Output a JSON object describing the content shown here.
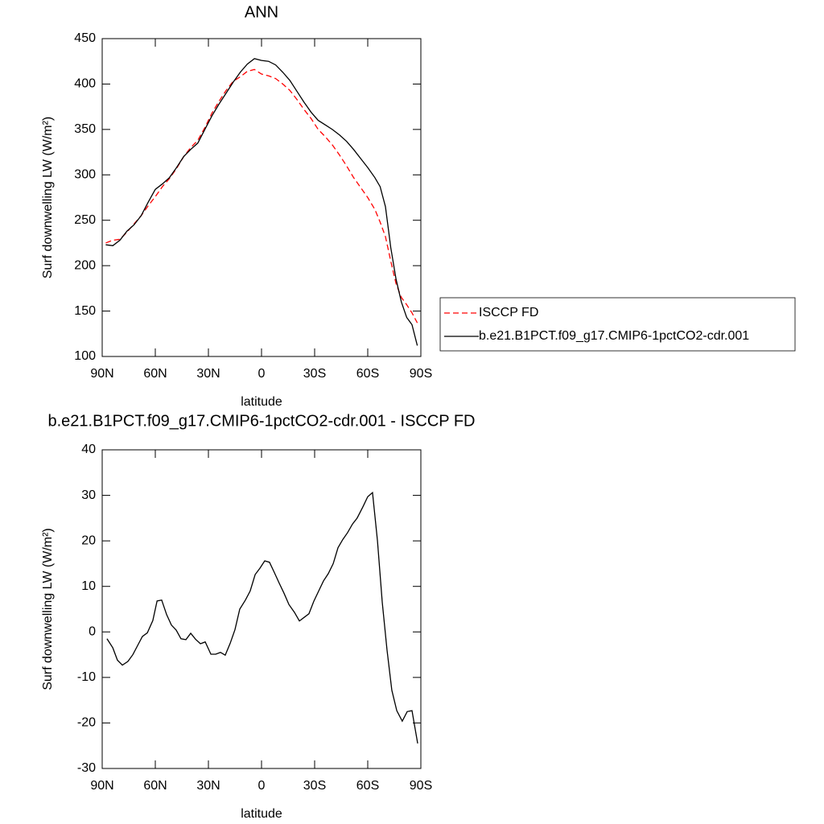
{
  "chart_data": [
    {
      "type": "line",
      "title": "ANN",
      "xlabel": "latitude",
      "ylabel": "Surf downwelling LW (W/m²)",
      "xlim": [
        90,
        -90
      ],
      "xticks": [
        {
          "value": 90,
          "label": "90N"
        },
        {
          "value": 60,
          "label": "60N"
        },
        {
          "value": 30,
          "label": "30N"
        },
        0,
        {
          "value": -30,
          "label": "30S"
        },
        {
          "value": -60,
          "label": "60S"
        },
        {
          "value": -90,
          "label": "90S"
        }
      ],
      "ylim": [
        100,
        450
      ],
      "yticks": [
        100,
        150,
        200,
        250,
        300,
        350,
        400,
        450
      ],
      "x": [
        88,
        84,
        80,
        76,
        72,
        68,
        64,
        60,
        56,
        52,
        48,
        44,
        40,
        36,
        32,
        28,
        24,
        20,
        16,
        12,
        8,
        4,
        0,
        -4,
        -8,
        -12,
        -16,
        -20,
        -24,
        -28,
        -32,
        -36,
        -40,
        -44,
        -48,
        -52,
        -56,
        -60,
        -64,
        -67,
        -70,
        -73,
        -76,
        -79,
        -82,
        -85,
        -88
      ],
      "legend": "right",
      "series": [
        {
          "name": "ISCCP FD",
          "color": "#ff0000",
          "linestyle": "dashed",
          "values": [
            225,
            228,
            229,
            237,
            246,
            255,
            266,
            276,
            287,
            296,
            307,
            320,
            330,
            338,
            352,
            368,
            381,
            393,
            403,
            408,
            414,
            416,
            411,
            409,
            406,
            400,
            393,
            383,
            372,
            362,
            350,
            342,
            333,
            322,
            310,
            297,
            286,
            275,
            262,
            248,
            232,
            205,
            180,
            165,
            157,
            148,
            137
          ]
        },
        {
          "name": "b.e21.B1PCT.f09_g17.CMIP6-1pctCO2-cdr.001",
          "color": "#000000",
          "linestyle": "solid",
          "values": [
            223,
            222,
            228,
            238,
            245,
            255,
            270,
            284,
            290,
            297,
            308,
            320,
            328,
            335,
            350,
            365,
            378,
            390,
            402,
            413,
            422,
            428,
            426,
            425,
            421,
            413,
            404,
            392,
            380,
            369,
            360,
            355,
            350,
            344,
            337,
            328,
            318,
            308,
            297,
            287,
            265,
            220,
            185,
            160,
            143,
            135,
            112
          ]
        }
      ]
    },
    {
      "type": "line",
      "title": "b.e21.B1PCT.f09_g17.CMIP6-1pctCO2-cdr.001 - ISCCP FD",
      "xlabel": "latitude",
      "ylabel": "Surf downwelling LW (W/m²)",
      "xlim": [
        90,
        -90
      ],
      "xticks": [
        {
          "value": 90,
          "label": "90N"
        },
        {
          "value": 60,
          "label": "60N"
        },
        {
          "value": 30,
          "label": "30N"
        },
        0,
        {
          "value": -30,
          "label": "30S"
        },
        {
          "value": -60,
          "label": "60S"
        },
        {
          "value": -90,
          "label": "90S"
        }
      ],
      "ylim": [
        -30,
        40
      ],
      "yticks": [
        -30,
        -20,
        -10,
        0,
        10,
        20,
        30,
        40
      ],
      "x": [
        87.3,
        84,
        81.4,
        78.6,
        75.5,
        72.7,
        70,
        67.3,
        64.5,
        61.4,
        59,
        56.4,
        53.6,
        50.9,
        48.2,
        45.5,
        42.7,
        40,
        37.3,
        34.5,
        31.8,
        28.6,
        25.9,
        23.2,
        20.5,
        17.7,
        15,
        12.3,
        9.1,
        6.4,
        3.6,
        0.9,
        -1.8,
        -4.5,
        -7.3,
        -10,
        -12.7,
        -15.5,
        -18.6,
        -21.4,
        -24.1,
        -26.8,
        -29.5,
        -32.3,
        -35,
        -37.7,
        -40.5,
        -43.2,
        -45.9,
        -48.6,
        -51.4,
        -54,
        -57.3,
        -60,
        -62.7,
        -65.5,
        -68.2,
        -70.9,
        -73.6,
        -76.4,
        -79.5,
        -82.3,
        -85,
        -88.2
      ],
      "series": [
        {
          "color": "#000000",
          "linestyle": "solid",
          "values": [
            -1.5,
            -3.5,
            -6.2,
            -7.3,
            -6.5,
            -5,
            -3,
            -1,
            -0.2,
            2.5,
            6.8,
            7,
            3.8,
            1.5,
            0.4,
            -1.5,
            -1.7,
            -0.3,
            -1.6,
            -2.6,
            -2.2,
            -4.9,
            -4.9,
            -4.5,
            -5.1,
            -2.5,
            0.5,
            5,
            7,
            9,
            12.6,
            14,
            15.6,
            15.3,
            13,
            10.7,
            8.5,
            6,
            4.3,
            2.4,
            3.2,
            4,
            6.7,
            9,
            11.2,
            12.8,
            15,
            18.5,
            20.3,
            21.8,
            23.7,
            25,
            27.5,
            29.7,
            30.6,
            20,
            6.5,
            -4,
            -12.8,
            -17.3,
            -19.6,
            -17.5,
            -17.3,
            -24.5
          ]
        }
      ]
    }
  ]
}
